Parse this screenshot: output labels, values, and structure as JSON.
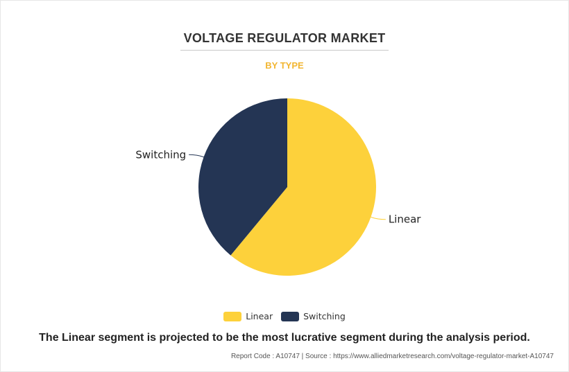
{
  "chart_data": {
    "type": "pie",
    "title": "VOLTAGE REGULATOR MARKET",
    "subtitle": "BY TYPE",
    "categories": [
      "Linear",
      "Switching"
    ],
    "values": [
      61,
      39
    ],
    "colors": [
      "#fdd13b",
      "#243554"
    ],
    "legend": "bottom"
  },
  "caption": "The Linear segment is projected to be the most lucrative segment during the analysis period.",
  "source": "Report Code : A10747  |  Source : https://www.alliedmarketresearch.com/voltage-regulator-market-A10747"
}
